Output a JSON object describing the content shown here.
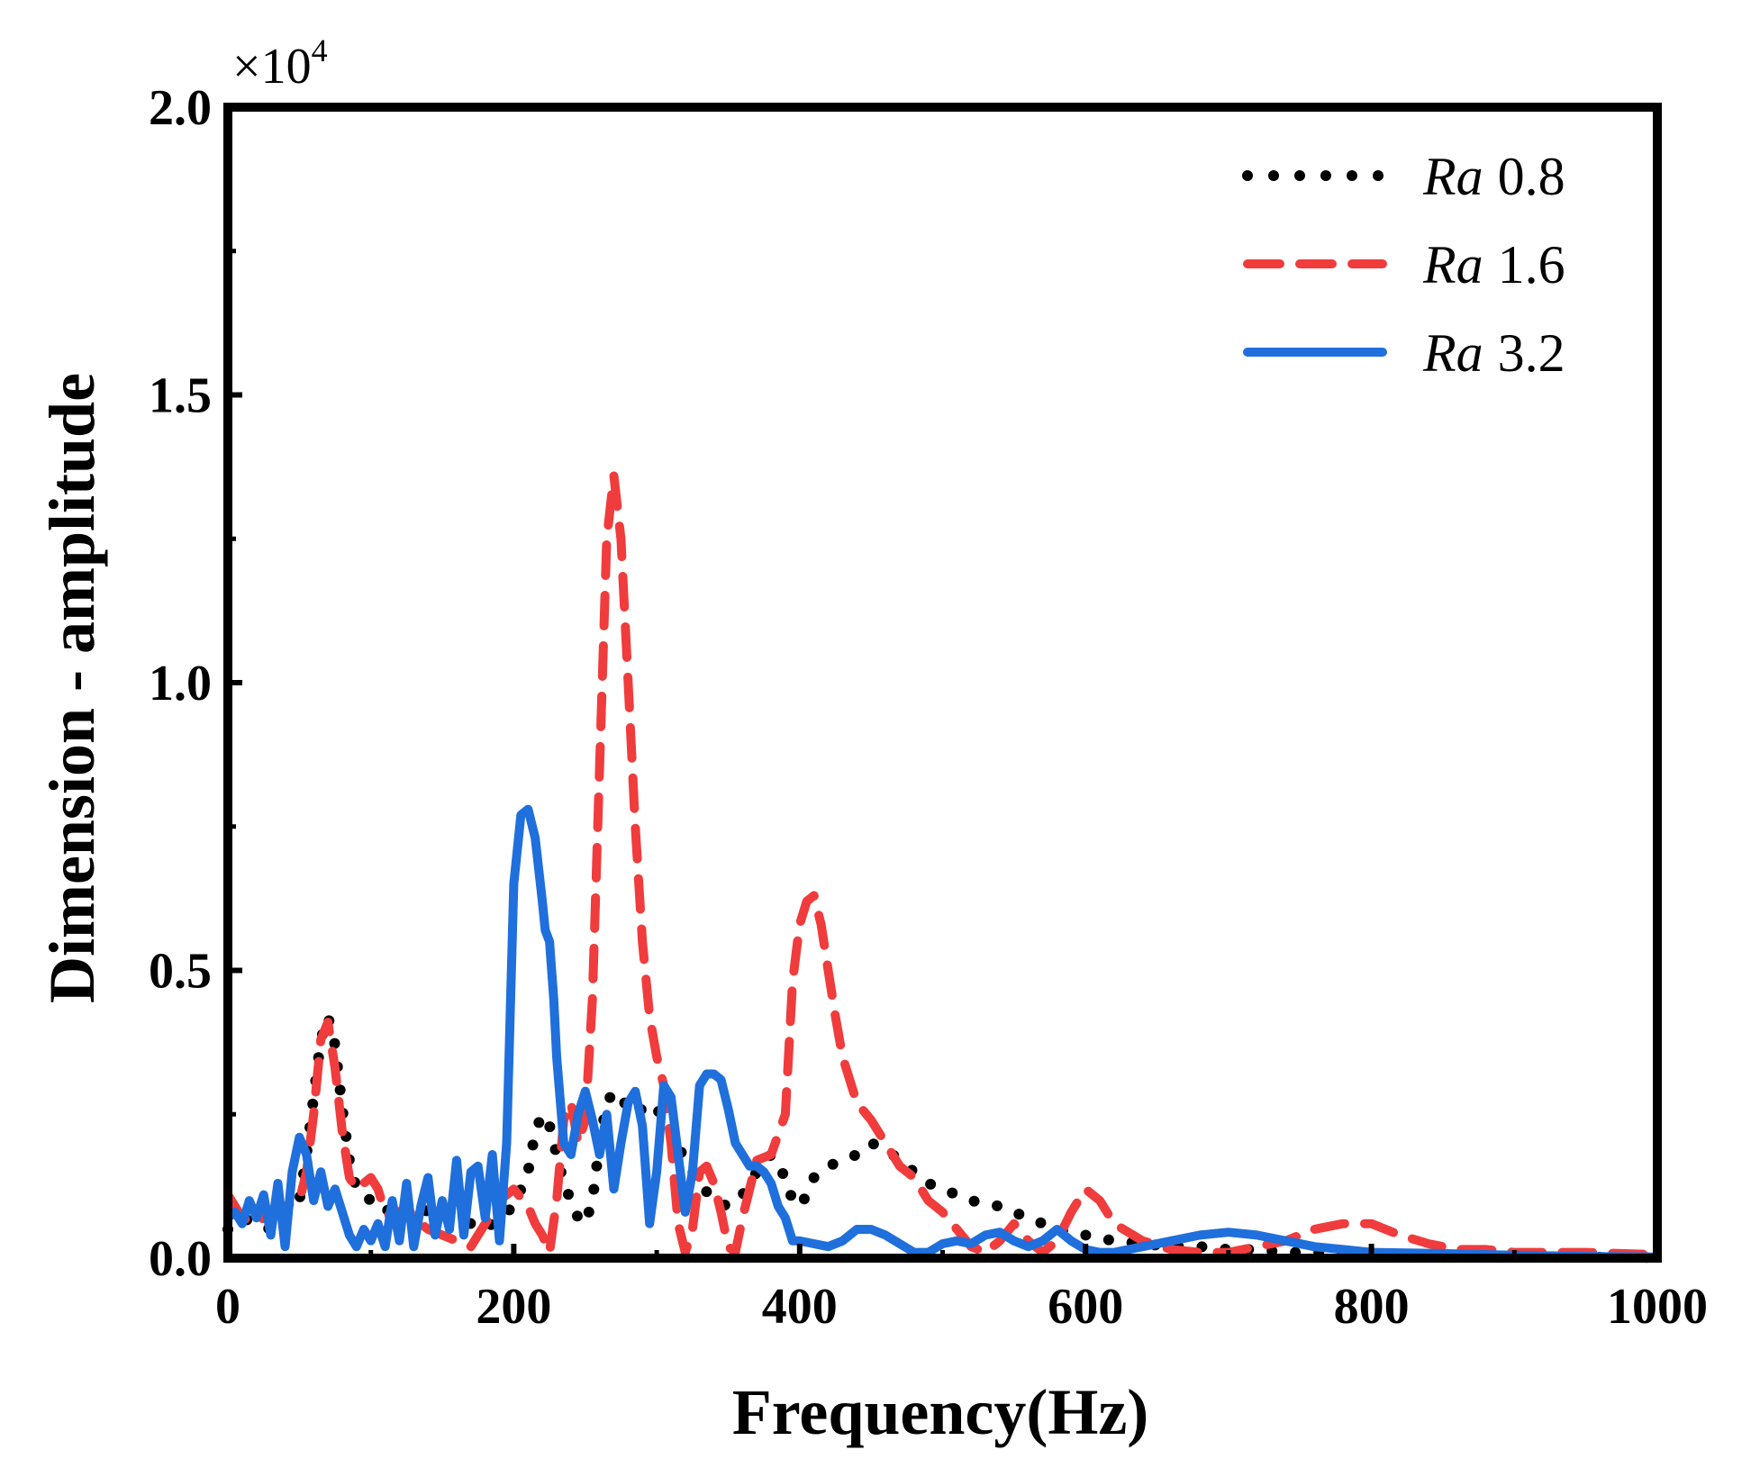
{
  "chart_data": {
    "type": "line",
    "title": "",
    "xlabel": "Frequency(Hz)",
    "ylabel": "Dimension - amplitude",
    "y_multiplier": {
      "base": "×10",
      "exponent": "4"
    },
    "xlim": [
      0,
      1000
    ],
    "ylim": [
      0,
      20000
    ],
    "xticks": [
      0,
      200,
      400,
      600,
      800,
      1000
    ],
    "xtick_labels": [
      "0",
      "200",
      "400",
      "600",
      "800",
      "1000"
    ],
    "yticks": [
      0,
      5000,
      10000,
      15000,
      20000
    ],
    "ytick_labels": [
      "0.0",
      "0.5",
      "1.0",
      "1.5",
      "2.0"
    ],
    "grid": false,
    "legend_position": "top-right",
    "series": [
      {
        "name": "Ra 0.8",
        "name_italic": "Ra",
        "name_value": "0.8",
        "style": "dotted",
        "color": "#000000",
        "x": [
          0,
          10,
          20,
          30,
          40,
          50,
          55,
          60,
          65,
          70,
          75,
          80,
          85,
          90,
          95,
          100,
          105,
          110,
          115,
          120,
          125,
          130,
          135,
          140,
          150,
          160,
          170,
          180,
          190,
          200,
          210,
          215,
          220,
          225,
          230,
          235,
          240,
          245,
          250,
          255,
          260,
          265,
          270,
          275,
          280,
          285,
          290,
          295,
          300,
          305,
          310,
          320,
          330,
          340,
          350,
          360,
          370,
          380,
          390,
          395,
          400,
          405,
          410,
          420,
          430,
          440,
          450,
          460,
          470,
          480,
          490,
          500,
          520,
          540,
          560,
          580,
          600,
          620,
          640,
          660,
          680,
          700,
          720,
          740,
          760,
          780,
          800,
          850,
          900,
          950,
          1000
        ],
        "y": [
          500,
          700,
          600,
          500,
          800,
          1000,
          1800,
          2800,
          3800,
          4200,
          3700,
          2600,
          1700,
          1200,
          1100,
          1000,
          900,
          800,
          900,
          850,
          900,
          1000,
          900,
          800,
          700,
          700,
          600,
          500,
          700,
          900,
          1500,
          2200,
          2500,
          2300,
          1800,
          1300,
          1000,
          700,
          600,
          1000,
          2000,
          2700,
          2900,
          2800,
          2600,
          2500,
          2600,
          2700,
          2600,
          2400,
          2200,
          1700,
          1300,
          1000,
          900,
          1100,
          1500,
          1800,
          1400,
          1000,
          900,
          1100,
          1400,
          1600,
          1700,
          1800,
          2000,
          1900,
          1700,
          1500,
          1300,
          1200,
          1000,
          900,
          700,
          500,
          400,
          300,
          250,
          200,
          200,
          150,
          150,
          100,
          100,
          80,
          60,
          40,
          30,
          20,
          10
        ]
      },
      {
        "name": "Ra 1.6",
        "name_italic": "Ra",
        "name_value": "1.6",
        "style": "dashed",
        "color": "#f03c3c",
        "x": [
          0,
          10,
          20,
          30,
          40,
          50,
          55,
          60,
          65,
          70,
          75,
          80,
          85,
          90,
          95,
          100,
          105,
          110,
          115,
          120,
          125,
          130,
          140,
          150,
          160,
          170,
          180,
          190,
          200,
          210,
          215,
          220,
          225,
          230,
          235,
          240,
          245,
          250,
          255,
          260,
          265,
          270,
          275,
          280,
          285,
          290,
          295,
          300,
          305,
          310,
          315,
          320,
          325,
          330,
          335,
          340,
          345,
          350,
          355,
          360,
          370,
          380,
          390,
          395,
          400,
          405,
          410,
          415,
          420,
          425,
          430,
          440,
          450,
          460,
          470,
          480,
          490,
          500,
          510,
          520,
          530,
          540,
          550,
          560,
          570,
          580,
          590,
          600,
          610,
          620,
          640,
          660,
          680,
          700,
          720,
          740,
          760,
          780,
          800,
          820,
          840,
          860,
          880,
          900,
          950,
          1000
        ],
        "y": [
          1100,
          700,
          600,
          800,
          900,
          1000,
          1500,
          2500,
          3800,
          4100,
          3300,
          2200,
          1400,
          1200,
          1300,
          1400,
          1200,
          800,
          700,
          800,
          900,
          700,
          500,
          400,
          300,
          200,
          600,
          1000,
          1200,
          900,
          600,
          400,
          100,
          1000,
          2400,
          2700,
          2000,
          2400,
          4500,
          8500,
          12500,
          13600,
          12500,
          10000,
          7500,
          5500,
          4200,
          3500,
          3000,
          2000,
          600,
          100,
          500,
          1500,
          1600,
          1300,
          800,
          200,
          100,
          700,
          1700,
          1800,
          2500,
          4800,
          5800,
          6200,
          6300,
          5800,
          5000,
          4200,
          3500,
          2700,
          2400,
          2000,
          1600,
          1400,
          1000,
          800,
          500,
          200,
          100,
          300,
          600,
          300,
          100,
          300,
          800,
          1200,
          1000,
          600,
          300,
          150,
          100,
          100,
          200,
          300,
          500,
          600,
          600,
          400,
          250,
          150,
          150,
          100,
          100,
          60
        ]
      },
      {
        "name": "Ra 3.2",
        "name_italic": "Ra",
        "name_value": "3.2",
        "style": "solid",
        "color": "#1f6fdc",
        "x": [
          0,
          5,
          10,
          15,
          20,
          25,
          30,
          35,
          40,
          45,
          50,
          55,
          60,
          65,
          70,
          75,
          80,
          85,
          90,
          95,
          100,
          105,
          110,
          115,
          120,
          125,
          130,
          135,
          140,
          145,
          150,
          155,
          160,
          165,
          170,
          175,
          180,
          185,
          190,
          195,
          200,
          205,
          210,
          215,
          220,
          222,
          225,
          228,
          230,
          235,
          240,
          245,
          250,
          255,
          260,
          265,
          270,
          275,
          280,
          285,
          290,
          295,
          300,
          305,
          310,
          315,
          320,
          325,
          330,
          335,
          340,
          345,
          350,
          355,
          360,
          365,
          370,
          375,
          380,
          385,
          390,
          395,
          400,
          410,
          420,
          430,
          440,
          450,
          460,
          470,
          480,
          490,
          500,
          510,
          520,
          530,
          540,
          550,
          560,
          570,
          580,
          590,
          600,
          610,
          620,
          630,
          640,
          660,
          680,
          700,
          720,
          740,
          760,
          780,
          800,
          850,
          900,
          950,
          1000
        ],
        "y": [
          700,
          800,
          600,
          1000,
          700,
          1100,
          400,
          1300,
          200,
          1500,
          2100,
          1800,
          1000,
          1500,
          900,
          1200,
          800,
          400,
          200,
          500,
          300,
          600,
          200,
          1000,
          300,
          1300,
          200,
          900,
          1400,
          400,
          1000,
          500,
          1700,
          400,
          1500,
          1600,
          700,
          1800,
          300,
          2000,
          6500,
          7700,
          7800,
          7300,
          6200,
          5700,
          5500,
          4500,
          3500,
          2000,
          1800,
          2500,
          2900,
          2400,
          1800,
          2500,
          1200,
          2000,
          2700,
          2900,
          2300,
          600,
          1500,
          3000,
          2800,
          1800,
          800,
          1500,
          3000,
          3200,
          3200,
          3100,
          2600,
          2000,
          1800,
          1600,
          1600,
          1500,
          1300,
          900,
          700,
          300,
          300,
          250,
          200,
          300,
          500,
          500,
          400,
          250,
          100,
          100,
          250,
          300,
          250,
          400,
          450,
          300,
          200,
          300,
          500,
          300,
          150,
          100,
          100,
          150,
          200,
          300,
          400,
          450,
          400,
          300,
          200,
          150,
          100,
          80,
          50,
          30,
          20
        ]
      }
    ]
  }
}
